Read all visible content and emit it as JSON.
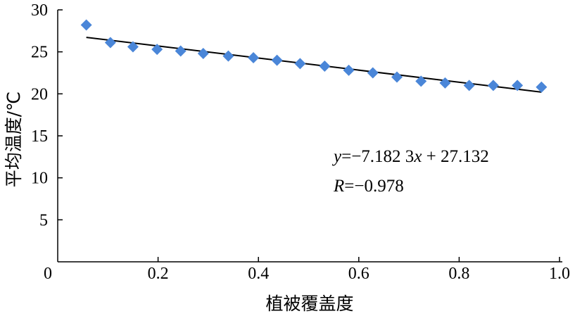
{
  "chart_data": {
    "type": "scatter",
    "xlabel": "植被覆盖度",
    "ylabel": "平均温度/℃",
    "xlim": [
      0,
      1.0
    ],
    "ylim": [
      0,
      30
    ],
    "xticks": [
      0.2,
      0.4,
      0.6,
      0.8,
      1.0
    ],
    "xtick_labels": [
      "0.2",
      "0.4",
      "0.6",
      "0.8",
      "1.0"
    ],
    "yticks": [
      5,
      10,
      15,
      20,
      25,
      30
    ],
    "ytick_labels": [
      "5",
      "10",
      "15",
      "20",
      "25",
      "30"
    ],
    "origin_label": "0",
    "grid": false,
    "marker": "diamond",
    "marker_color": "#4a86d8",
    "line_color": "#000000",
    "points": [
      {
        "x": 0.057,
        "y": 28.2
      },
      {
        "x": 0.105,
        "y": 26.1
      },
      {
        "x": 0.15,
        "y": 25.6
      },
      {
        "x": 0.198,
        "y": 25.3
      },
      {
        "x": 0.245,
        "y": 25.1
      },
      {
        "x": 0.29,
        "y": 24.8
      },
      {
        "x": 0.34,
        "y": 24.5
      },
      {
        "x": 0.39,
        "y": 24.3
      },
      {
        "x": 0.437,
        "y": 24.0
      },
      {
        "x": 0.483,
        "y": 23.6
      },
      {
        "x": 0.532,
        "y": 23.3
      },
      {
        "x": 0.58,
        "y": 22.8
      },
      {
        "x": 0.628,
        "y": 22.5
      },
      {
        "x": 0.676,
        "y": 22.0
      },
      {
        "x": 0.724,
        "y": 21.5
      },
      {
        "x": 0.772,
        "y": 21.3
      },
      {
        "x": 0.82,
        "y": 21.0
      },
      {
        "x": 0.868,
        "y": 21.0
      },
      {
        "x": 0.916,
        "y": 21.0
      },
      {
        "x": 0.964,
        "y": 20.8
      }
    ],
    "trendline": {
      "slope": -7.1823,
      "intercept": 27.132,
      "x_start": 0.057,
      "x_end": 0.964
    },
    "annotations": {
      "equation": {
        "y": "y",
        "eq1": "=−7.182 3",
        "x": "x",
        "eq2": " + 27.132"
      },
      "correlation": {
        "r": "R",
        "value": "=−0.978"
      }
    }
  }
}
